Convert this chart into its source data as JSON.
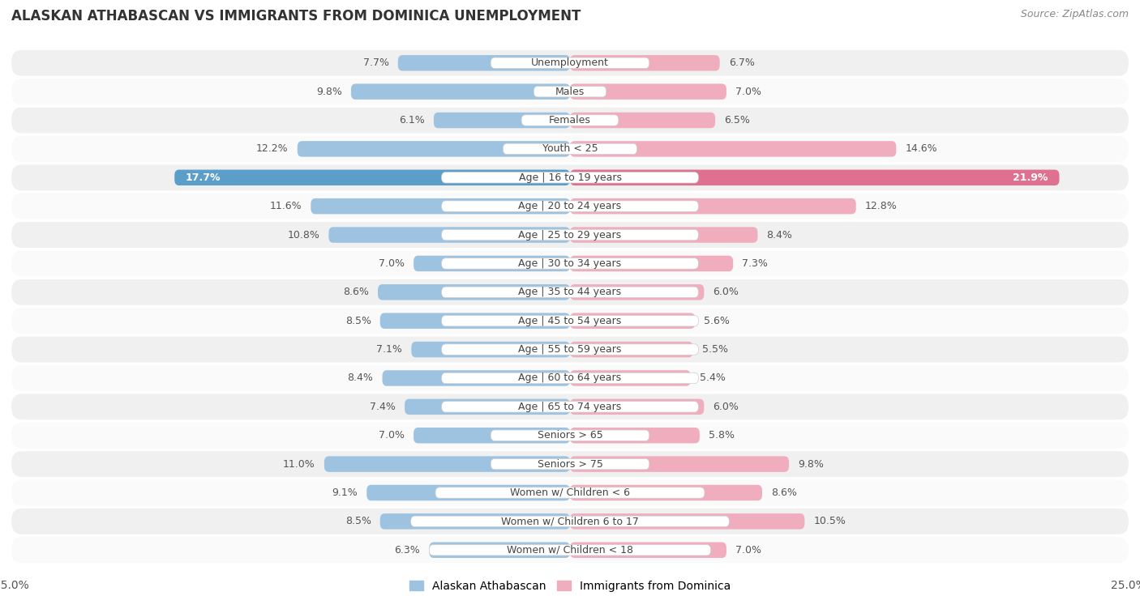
{
  "title": "ALASKAN ATHABASCAN VS IMMIGRANTS FROM DOMINICA UNEMPLOYMENT",
  "source": "Source: ZipAtlas.com",
  "categories": [
    "Unemployment",
    "Males",
    "Females",
    "Youth < 25",
    "Age | 16 to 19 years",
    "Age | 20 to 24 years",
    "Age | 25 to 29 years",
    "Age | 30 to 34 years",
    "Age | 35 to 44 years",
    "Age | 45 to 54 years",
    "Age | 55 to 59 years",
    "Age | 60 to 64 years",
    "Age | 65 to 74 years",
    "Seniors > 65",
    "Seniors > 75",
    "Women w/ Children < 6",
    "Women w/ Children 6 to 17",
    "Women w/ Children < 18"
  ],
  "left_values": [
    7.7,
    9.8,
    6.1,
    12.2,
    17.7,
    11.6,
    10.8,
    7.0,
    8.6,
    8.5,
    7.1,
    8.4,
    7.4,
    7.0,
    11.0,
    9.1,
    8.5,
    6.3
  ],
  "right_values": [
    6.7,
    7.0,
    6.5,
    14.6,
    21.9,
    12.8,
    8.4,
    7.3,
    6.0,
    5.6,
    5.5,
    5.4,
    6.0,
    5.8,
    9.8,
    8.6,
    10.5,
    7.0
  ],
  "left_color": "#9DC3E0",
  "right_color": "#F0ADBE",
  "left_highlight_color": "#5A9EC9",
  "right_highlight_color": "#E07090",
  "highlight_index": 4,
  "left_label": "Alaskan Athabascan",
  "right_label": "Immigrants from Dominica",
  "xlim": 25.0,
  "background_color": "#ffffff",
  "row_bg_odd": "#f0f0f0",
  "row_bg_even": "#fafafa",
  "title_fontsize": 12,
  "source_fontsize": 9,
  "bar_height": 0.55,
  "label_fontsize": 9,
  "value_fontsize": 9
}
